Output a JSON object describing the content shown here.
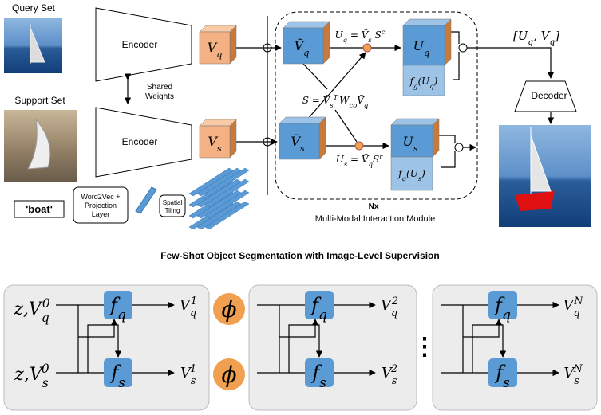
{
  "query_set": "Query Set",
  "support_set": "Support Set",
  "encoder_top": "Encoder",
  "encoder_bottom": "Encoder",
  "shared_weights": [
    "Shared",
    "Weights"
  ],
  "vq": [
    "V",
    "q"
  ],
  "vs": [
    "V",
    "s"
  ],
  "vq_tilde": [
    "Ṽ",
    "q"
  ],
  "vs_tilde": [
    "Ṽ",
    "s"
  ],
  "eq_uq": [
    "U",
    "q",
    " = Ṽ",
    "s",
    " S",
    "c"
  ],
  "uq": [
    "U",
    "q"
  ],
  "fg_uq": [
    "f",
    "g",
    "(U",
    "q",
    ")"
  ],
  "eq_s": [
    "S = Ṽ",
    "s",
    "T",
    "W",
    "co",
    "Ṽ",
    "q"
  ],
  "eq_us": [
    "U",
    "s",
    " = Ṽ",
    "q",
    "S",
    "r"
  ],
  "us": [
    "U",
    "s"
  ],
  "fg_us": [
    "f",
    "g",
    "(U",
    "s",
    ")"
  ],
  "nx": "Nx",
  "module": "Multi-Modal Interaction Module",
  "concat": "[U",
  "concat_parts": [
    "q",
    ", V",
    "q",
    "]"
  ],
  "decoder": "Decoder",
  "boat": "'boat'",
  "word2vec": [
    "Word2Vec +",
    "Projection",
    "Layer"
  ],
  "tiling": [
    "Spatial",
    "Tiling"
  ],
  "caption": "Few-Shot Object Segmentation with Image-Level Supervision",
  "bottom": {
    "z_q": [
      "z",
      ",V",
      "q",
      "0"
    ],
    "z_s": [
      "z",
      ",V",
      "s",
      "0"
    ],
    "f_q": [
      "f",
      "q"
    ],
    "f_s": [
      "f",
      "s"
    ],
    "phi": "ϕ",
    "dots": "⋮",
    "out_q": [
      [
        "V",
        "q",
        "1"
      ],
      [
        "V",
        "q",
        "2"
      ],
      [
        "V",
        "q",
        "N"
      ]
    ],
    "out_s": [
      [
        "V",
        "s",
        "1"
      ],
      [
        "V",
        "s",
        "2"
      ],
      [
        "V",
        "s",
        "N"
      ]
    ]
  }
}
